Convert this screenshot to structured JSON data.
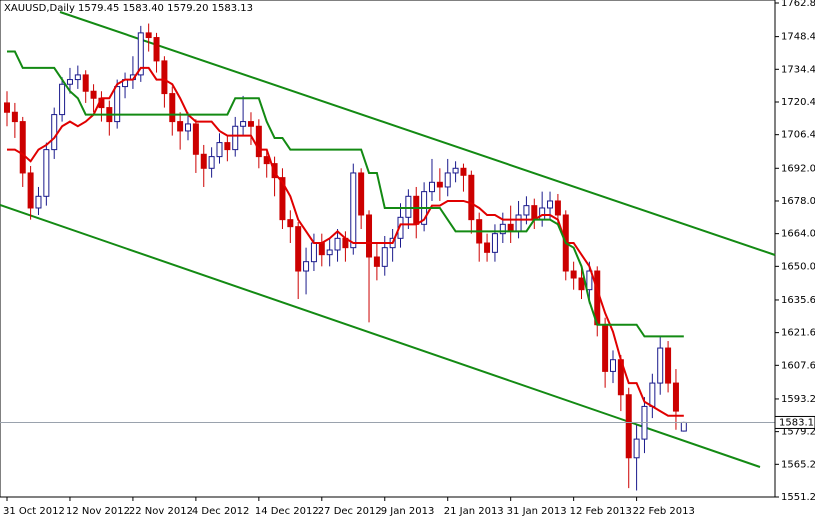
{
  "chart_data": {
    "type": "candlestick",
    "title": "XAUUSD,Daily  1579.45 1583.40 1579.20 1583.13",
    "categories": [
      "31 Oct 2012",
      null,
      null,
      null,
      null,
      null,
      null,
      null,
      "12 Nov 2012",
      null,
      null,
      null,
      null,
      null,
      null,
      null,
      "22 Nov 2012",
      null,
      null,
      null,
      null,
      null,
      null,
      null,
      "4 Dec 2012",
      null,
      null,
      null,
      null,
      null,
      null,
      null,
      "14 Dec 2012",
      null,
      null,
      null,
      null,
      null,
      null,
      null,
      "27 Dec 2012",
      null,
      null,
      null,
      null,
      null,
      null,
      null,
      "9 Jan 2013",
      null,
      null,
      null,
      null,
      null,
      null,
      null,
      "21 Jan 2013",
      null,
      null,
      null,
      null,
      null,
      null,
      null,
      "31 Jan 2013",
      null,
      null,
      null,
      null,
      null,
      null,
      null,
      "12 Feb 2013",
      null,
      null,
      null,
      null,
      null,
      null,
      null,
      "22 Feb 2013",
      null,
      null,
      null,
      null,
      null,
      null
    ],
    "open": [
      1720,
      1716,
      1712,
      1690,
      1675,
      1680,
      1700,
      1715,
      1728,
      1730,
      1732,
      1725,
      1722,
      1718,
      1712,
      1727,
      1730,
      1732,
      1750,
      1748,
      1738,
      1724,
      1712,
      1708,
      1711,
      1698,
      1692,
      1697,
      1703,
      1700,
      1710,
      1712,
      1710,
      1697,
      1694,
      1688,
      1670,
      1667,
      1648,
      1652,
      1660,
      1655,
      1657,
      1662,
      1658,
      1690,
      1672,
      1654,
      1650,
      1658,
      1662,
      1671,
      1680,
      1668,
      1682,
      1686,
      1684,
      1690,
      1692,
      1689,
      1670,
      1660,
      1656,
      1664,
      1668,
      1665,
      1672,
      1676,
      1670,
      1675,
      1678,
      1672,
      1648,
      1645,
      1640,
      1648,
      1625,
      1605,
      1610,
      1595,
      1568,
      1576,
      1590,
      1600,
      1615,
      1600,
      1579.45
    ],
    "high": [
      1725,
      1720,
      1714,
      1693,
      1684,
      1703,
      1718,
      1731,
      1735,
      1736,
      1734,
      1728,
      1725,
      1721,
      1730,
      1733,
      1740,
      1753,
      1754,
      1750,
      1740,
      1727,
      1716,
      1716,
      1713,
      1702,
      1701,
      1707,
      1706,
      1714,
      1723,
      1716,
      1713,
      1700,
      1697,
      1692,
      1674,
      1669,
      1658,
      1664,
      1664,
      1662,
      1666,
      1665,
      1694,
      1692,
      1674,
      1660,
      1663,
      1666,
      1677,
      1683,
      1684,
      1686,
      1696,
      1692,
      1696,
      1695,
      1694,
      1691,
      1673,
      1664,
      1668,
      1673,
      1676,
      1678,
      1680,
      1679,
      1682,
      1682,
      1681,
      1674,
      1652,
      1650,
      1652,
      1650,
      1628,
      1614,
      1612,
      1598,
      1582,
      1594,
      1604,
      1620,
      1618,
      1606,
      1583.4
    ],
    "low": [
      1710,
      1705,
      1684,
      1670,
      1672,
      1676,
      1696,
      1712,
      1724,
      1726,
      1720,
      1716,
      1712,
      1706,
      1709,
      1722,
      1726,
      1729,
      1742,
      1733,
      1718,
      1706,
      1700,
      1704,
      1690,
      1684,
      1688,
      1694,
      1695,
      1697,
      1706,
      1702,
      1692,
      1688,
      1680,
      1666,
      1660,
      1636,
      1638,
      1648,
      1650,
      1650,
      1652,
      1652,
      1655,
      1666,
      1626,
      1644,
      1646,
      1652,
      1658,
      1666,
      1662,
      1665,
      1678,
      1678,
      1680,
      1686,
      1682,
      1664,
      1652,
      1652,
      1652,
      1660,
      1660,
      1662,
      1668,
      1666,
      1667,
      1670,
      1668,
      1644,
      1640,
      1636,
      1634,
      1620,
      1598,
      1600,
      1588,
      1555,
      1554,
      1570,
      1585,
      1595,
      1596,
      1580,
      1579.2
    ],
    "close": [
      1716,
      1712,
      1690,
      1675,
      1680,
      1700,
      1715,
      1728,
      1730,
      1732,
      1725,
      1722,
      1718,
      1712,
      1727,
      1730,
      1732,
      1750,
      1748,
      1738,
      1724,
      1712,
      1708,
      1711,
      1698,
      1692,
      1697,
      1703,
      1700,
      1710,
      1712,
      1710,
      1697,
      1694,
      1688,
      1670,
      1667,
      1648,
      1652,
      1660,
      1655,
      1657,
      1662,
      1658,
      1690,
      1672,
      1654,
      1650,
      1658,
      1662,
      1671,
      1680,
      1668,
      1682,
      1686,
      1684,
      1690,
      1692,
      1689,
      1670,
      1660,
      1656,
      1664,
      1668,
      1665,
      1672,
      1676,
      1670,
      1675,
      1678,
      1672,
      1648,
      1645,
      1640,
      1648,
      1625,
      1605,
      1610,
      1595,
      1568,
      1576,
      1590,
      1600,
      1615,
      1600,
      1588,
      1583.13
    ],
    "up_color": "#1a1a8c",
    "down_color": "#cc0000",
    "series": [
      {
        "color": "#e00000",
        "values": [
          1700,
          1700,
          1698,
          1695,
          1700,
          1702,
          1705,
          1710,
          1712,
          1710,
          1712,
          1715,
          1722,
          1722,
          1728,
          1730,
          1730,
          1735,
          1735,
          1730,
          1730,
          1728,
          1722,
          1715,
          1712,
          1712,
          1712,
          1708,
          1706,
          1706,
          1706,
          1706,
          1700,
          1700,
          1690,
          1686,
          1680,
          1670,
          1665,
          1660,
          1660,
          1662,
          1665,
          1662,
          1660,
          1660,
          1660,
          1660,
          1660,
          1660,
          1668,
          1668,
          1668,
          1670,
          1676,
          1676,
          1678,
          1678,
          1678,
          1677,
          1675,
          1672,
          1672,
          1670,
          1670,
          1670,
          1670,
          1670,
          1672,
          1672,
          1670,
          1660,
          1660,
          1655,
          1650,
          1640,
          1630,
          1622,
          1610,
          1600,
          1600,
          1592,
          1590,
          1588,
          1586,
          1586,
          1586
        ]
      },
      {
        "color": "#138a13",
        "values": [
          1742,
          1742,
          1735,
          1735,
          1735,
          1735,
          1735,
          1730,
          1725,
          1722,
          1715,
          1715,
          1715,
          1715,
          1715,
          1715,
          1715,
          1715,
          1715,
          1715,
          1715,
          1715,
          1715,
          1715,
          1715,
          1715,
          1715,
          1715,
          1715,
          1722,
          1722,
          1722,
          1722,
          1712,
          1705,
          1705,
          1700,
          1700,
          1700,
          1700,
          1700,
          1700,
          1700,
          1700,
          1700,
          1700,
          1690,
          1690,
          1675,
          1675,
          1675,
          1675,
          1675,
          1675,
          1675,
          1675,
          1670,
          1665,
          1665,
          1665,
          1665,
          1665,
          1665,
          1665,
          1665,
          1665,
          1665,
          1670,
          1670,
          1670,
          1668,
          1660,
          1658,
          1650,
          1635,
          1625,
          1625,
          1625,
          1625,
          1625,
          1625,
          1620,
          1620,
          1620,
          1620,
          1620,
          1620
        ]
      }
    ],
    "ylim": [
      1551.2,
      1762.8
    ],
    "yticks": [
      {
        "value": 1762.8,
        "label": "1762.80"
      },
      1748.4,
      1734.4,
      1720.4,
      1706.4,
      {
        "value": 1692,
        "label": "1692.00"
      },
      {
        "value": 1678,
        "label": "1678.00"
      },
      {
        "value": 1664,
        "label": "1664.00"
      },
      {
        "value": 1650,
        "label": "1650.00"
      },
      1635.6,
      1621.6,
      1607.6,
      1593.2,
      1579.2,
      1565.2,
      1551.2
    ],
    "current_price": 1583.13
  }
}
